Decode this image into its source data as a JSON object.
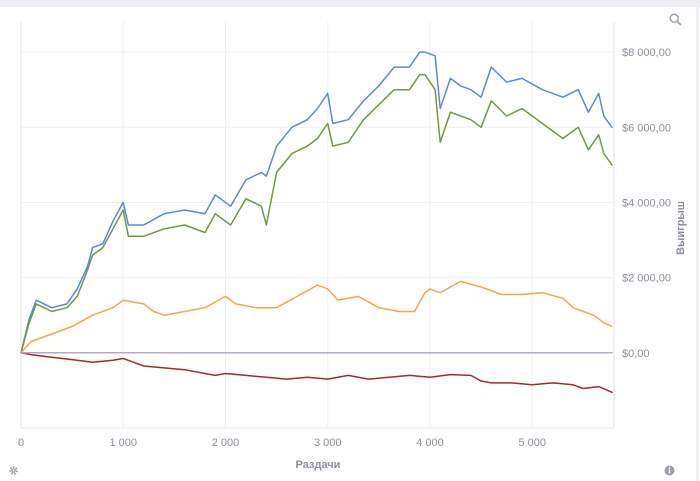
{
  "chart_data": {
    "type": "line",
    "xlabel": "Раздачи",
    "ylabel": "Выигрыш",
    "xlim": [
      0,
      5800
    ],
    "ylim": [
      -2000,
      8800
    ],
    "x_ticks": [
      {
        "value": 0,
        "label": "0"
      },
      {
        "value": 1000,
        "label": "1 000"
      },
      {
        "value": 2000,
        "label": "2 000"
      },
      {
        "value": 3000,
        "label": "3 000"
      },
      {
        "value": 4000,
        "label": "4 000"
      },
      {
        "value": 5000,
        "label": "5 000"
      }
    ],
    "y_ticks": [
      {
        "value": 0,
        "label": "$0,00"
      },
      {
        "value": 2000,
        "label": "$2 000,00"
      },
      {
        "value": 4000,
        "label": "$4 000,00"
      },
      {
        "value": 6000,
        "label": "$6 000,00"
      },
      {
        "value": 8000,
        "label": "$8 000,00"
      }
    ],
    "grid": true,
    "series": [
      {
        "color": "#5b86e5",
        "x": [
          0,
          80,
          150,
          300,
          450,
          550,
          650,
          700,
          800,
          900,
          1000,
          1050,
          1200,
          1400,
          1600,
          1800,
          1900,
          2050,
          2200,
          2350,
          2400,
          2500,
          2650,
          2800,
          2900,
          3000,
          3050,
          3200,
          3350,
          3500,
          3650,
          3800,
          3900,
          3950,
          4050,
          4100,
          4200,
          4300,
          4400,
          4500,
          4600,
          4750,
          4900,
          5100,
          5300,
          5450,
          5550,
          5650,
          5700,
          5780
        ],
        "y": [
          0,
          900,
          1400,
          1200,
          1300,
          1700,
          2300,
          2800,
          2900,
          3500,
          4000,
          3400,
          3400,
          3700,
          3800,
          3700,
          4200,
          3900,
          4600,
          4800,
          4700,
          5500,
          6000,
          6200,
          6500,
          6900,
          6100,
          6200,
          6700,
          7100,
          7600,
          7600,
          8000,
          8000,
          7900,
          6500,
          7300,
          7100,
          7000,
          6800,
          7600,
          7200,
          7300,
          7000,
          6800,
          7000,
          6400,
          6900,
          6300,
          6000
        ]
      },
      {
        "color": "#6f9a3f",
        "x": [
          0,
          80,
          150,
          300,
          450,
          550,
          650,
          700,
          800,
          900,
          1000,
          1050,
          1200,
          1400,
          1600,
          1800,
          1900,
          2050,
          2200,
          2350,
          2400,
          2500,
          2650,
          2800,
          2900,
          3000,
          3050,
          3200,
          3350,
          3500,
          3650,
          3800,
          3900,
          3950,
          4050,
          4100,
          4200,
          4300,
          4400,
          4500,
          4600,
          4750,
          4900,
          5100,
          5300,
          5450,
          5550,
          5650,
          5700,
          5780
        ],
        "y": [
          0,
          800,
          1300,
          1100,
          1200,
          1500,
          2200,
          2600,
          2800,
          3300,
          3800,
          3100,
          3100,
          3300,
          3400,
          3200,
          3700,
          3400,
          4100,
          3900,
          3400,
          4800,
          5300,
          5500,
          5700,
          6100,
          5500,
          5600,
          6200,
          6600,
          7000,
          7000,
          7400,
          7400,
          7000,
          5600,
          6400,
          6300,
          6200,
          6000,
          6700,
          6300,
          6500,
          6100,
          5700,
          6000,
          5400,
          5800,
          5300,
          5000
        ]
      },
      {
        "color": "#f5a54a",
        "x": [
          0,
          100,
          300,
          500,
          700,
          900,
          1000,
          1100,
          1200,
          1300,
          1400,
          1600,
          1800,
          2000,
          2100,
          2300,
          2500,
          2700,
          2900,
          3000,
          3100,
          3300,
          3500,
          3700,
          3850,
          3950,
          4000,
          4100,
          4300,
          4500,
          4700,
          4900,
          5100,
          5300,
          5400,
          5500,
          5600,
          5700,
          5780
        ],
        "y": [
          0,
          300,
          500,
          700,
          1000,
          1200,
          1400,
          1350,
          1300,
          1100,
          1000,
          1100,
          1200,
          1500,
          1300,
          1200,
          1200,
          1500,
          1800,
          1700,
          1400,
          1500,
          1200,
          1100,
          1100,
          1600,
          1700,
          1600,
          1900,
          1750,
          1550,
          1550,
          1600,
          1450,
          1200,
          1100,
          1000,
          800,
          700
        ]
      },
      {
        "color": "#a52a2a",
        "x": [
          0,
          100,
          300,
          500,
          700,
          900,
          1000,
          1100,
          1200,
          1400,
          1600,
          1800,
          1900,
          2000,
          2200,
          2400,
          2600,
          2800,
          3000,
          3200,
          3400,
          3600,
          3800,
          4000,
          4200,
          4400,
          4500,
          4600,
          4800,
          5000,
          5200,
          5400,
          5500,
          5650,
          5780
        ],
        "y": [
          0,
          -50,
          -120,
          -180,
          -250,
          -200,
          -150,
          -250,
          -350,
          -400,
          -450,
          -550,
          -600,
          -550,
          -600,
          -650,
          -700,
          -650,
          -700,
          -600,
          -700,
          -650,
          -600,
          -650,
          -580,
          -600,
          -750,
          -800,
          -800,
          -850,
          -800,
          -850,
          -950,
          -900,
          -1050
        ]
      },
      {
        "color": "#b7a8c4",
        "x": [
          0,
          5780
        ],
        "y": [
          0,
          0
        ]
      }
    ]
  },
  "icons": {
    "zoom": "zoom-icon",
    "settings": "gear-icon",
    "info": "info-icon"
  }
}
